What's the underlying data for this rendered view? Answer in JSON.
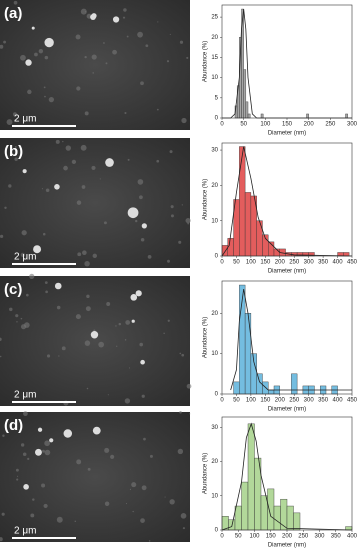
{
  "chart_data": [
    {
      "type": "histogram",
      "panel_label": "(a)",
      "scale_bar": "2 μm",
      "xlabel": "Diameter (nm)",
      "ylabel": "Abundance (%)",
      "color": "#a6a6a6",
      "bins": [
        30,
        35,
        40,
        45,
        50,
        55,
        60,
        65,
        90,
        95,
        195,
        200,
        285,
        290
      ],
      "values": [
        3,
        8,
        20,
        27,
        12,
        4,
        1,
        0,
        1,
        0,
        1,
        0,
        1
      ],
      "fit": {
        "x": [
          0,
          20,
          30,
          40,
          45,
          50,
          55,
          60,
          70,
          80,
          300
        ],
        "values": [
          0,
          0,
          1,
          10,
          22,
          27,
          22,
          10,
          1,
          0,
          0
        ]
      },
      "xlim": [
        0,
        300
      ],
      "xticks": [
        0,
        50,
        100,
        150,
        200,
        250,
        300
      ],
      "ylim": [
        0,
        28
      ],
      "yticks": [
        0,
        5,
        10,
        15,
        20,
        25
      ]
    },
    {
      "type": "histogram",
      "panel_label": "(b)",
      "scale_bar": "2 μm",
      "xlabel": "Diameter (nm)",
      "ylabel": "Abundance (%)",
      "color": "#e35d5d",
      "bins": [
        0,
        20,
        40,
        60,
        80,
        100,
        120,
        140,
        160,
        180,
        200,
        220,
        240,
        260,
        280,
        300,
        320,
        340,
        360,
        380,
        400,
        420,
        440
      ],
      "values": [
        3,
        5,
        16,
        31,
        18,
        17,
        10,
        6,
        4,
        2,
        2,
        1,
        1,
        1,
        1,
        1,
        0,
        0,
        0,
        0,
        1,
        1
      ],
      "fit": {
        "x": [
          0,
          25,
          50,
          75,
          100,
          125,
          150,
          200,
          250,
          450
        ],
        "values": [
          0,
          3,
          18,
          31,
          22,
          11,
          5,
          1,
          0.3,
          0
        ]
      },
      "xlim": [
        0,
        450
      ],
      "xticks": [
        0,
        50,
        100,
        150,
        200,
        250,
        300,
        350,
        400,
        450
      ],
      "ylim": [
        0,
        32
      ],
      "yticks": [
        0,
        10,
        20,
        30
      ]
    },
    {
      "type": "histogram",
      "panel_label": "(c)",
      "scale_bar": "2 μm",
      "xlabel": "Diameter (nm)",
      "ylabel": "Abundance (%)",
      "color": "#74bde0",
      "bins": [
        0,
        20,
        40,
        60,
        80,
        100,
        120,
        140,
        160,
        180,
        200,
        220,
        240,
        260,
        280,
        300,
        320,
        340,
        360,
        380,
        400,
        420,
        440
      ],
      "values": [
        0,
        0,
        3,
        27,
        20,
        10,
        5,
        3,
        1,
        2,
        0,
        0,
        5,
        0,
        2,
        2,
        0,
        2,
        0,
        2,
        0,
        0
      ],
      "fit": {
        "x": [
          30,
          50,
          60,
          75,
          90,
          110,
          130,
          160,
          200,
          450
        ],
        "values": [
          1,
          6,
          18,
          26,
          20,
          8,
          3,
          1,
          1,
          1
        ]
      },
      "xlim": [
        0,
        450
      ],
      "xticks": [
        0,
        50,
        100,
        150,
        200,
        250,
        300,
        350,
        400,
        450
      ],
      "ylim": [
        0,
        28
      ],
      "yticks": [
        0,
        10,
        20
      ]
    },
    {
      "type": "histogram",
      "panel_label": "(d)",
      "scale_bar": "2 μm",
      "xlabel": "Diameter (nm)",
      "ylabel": "Abundance (%)",
      "color": "#b2d89a",
      "bins": [
        0,
        20,
        40,
        60,
        80,
        100,
        120,
        140,
        160,
        180,
        200,
        220,
        240,
        260,
        280,
        300,
        320,
        340,
        360,
        380,
        400
      ],
      "values": [
        4,
        3,
        7,
        14,
        31,
        21,
        10,
        12,
        7,
        9,
        7,
        5,
        0,
        0,
        0,
        0,
        0,
        0,
        0,
        1
      ],
      "fit": {
        "x": [
          0,
          30,
          60,
          75,
          90,
          105,
          120,
          150,
          200,
          400
        ],
        "values": [
          0,
          1,
          14,
          27,
          31,
          26,
          16,
          4,
          0.5,
          0
        ]
      },
      "xlim": [
        0,
        400
      ],
      "xticks": [
        0,
        50,
        100,
        150,
        200,
        250,
        300,
        350,
        400
      ],
      "ylim": [
        0,
        33
      ],
      "yticks": [
        0,
        10,
        20,
        30
      ]
    }
  ]
}
